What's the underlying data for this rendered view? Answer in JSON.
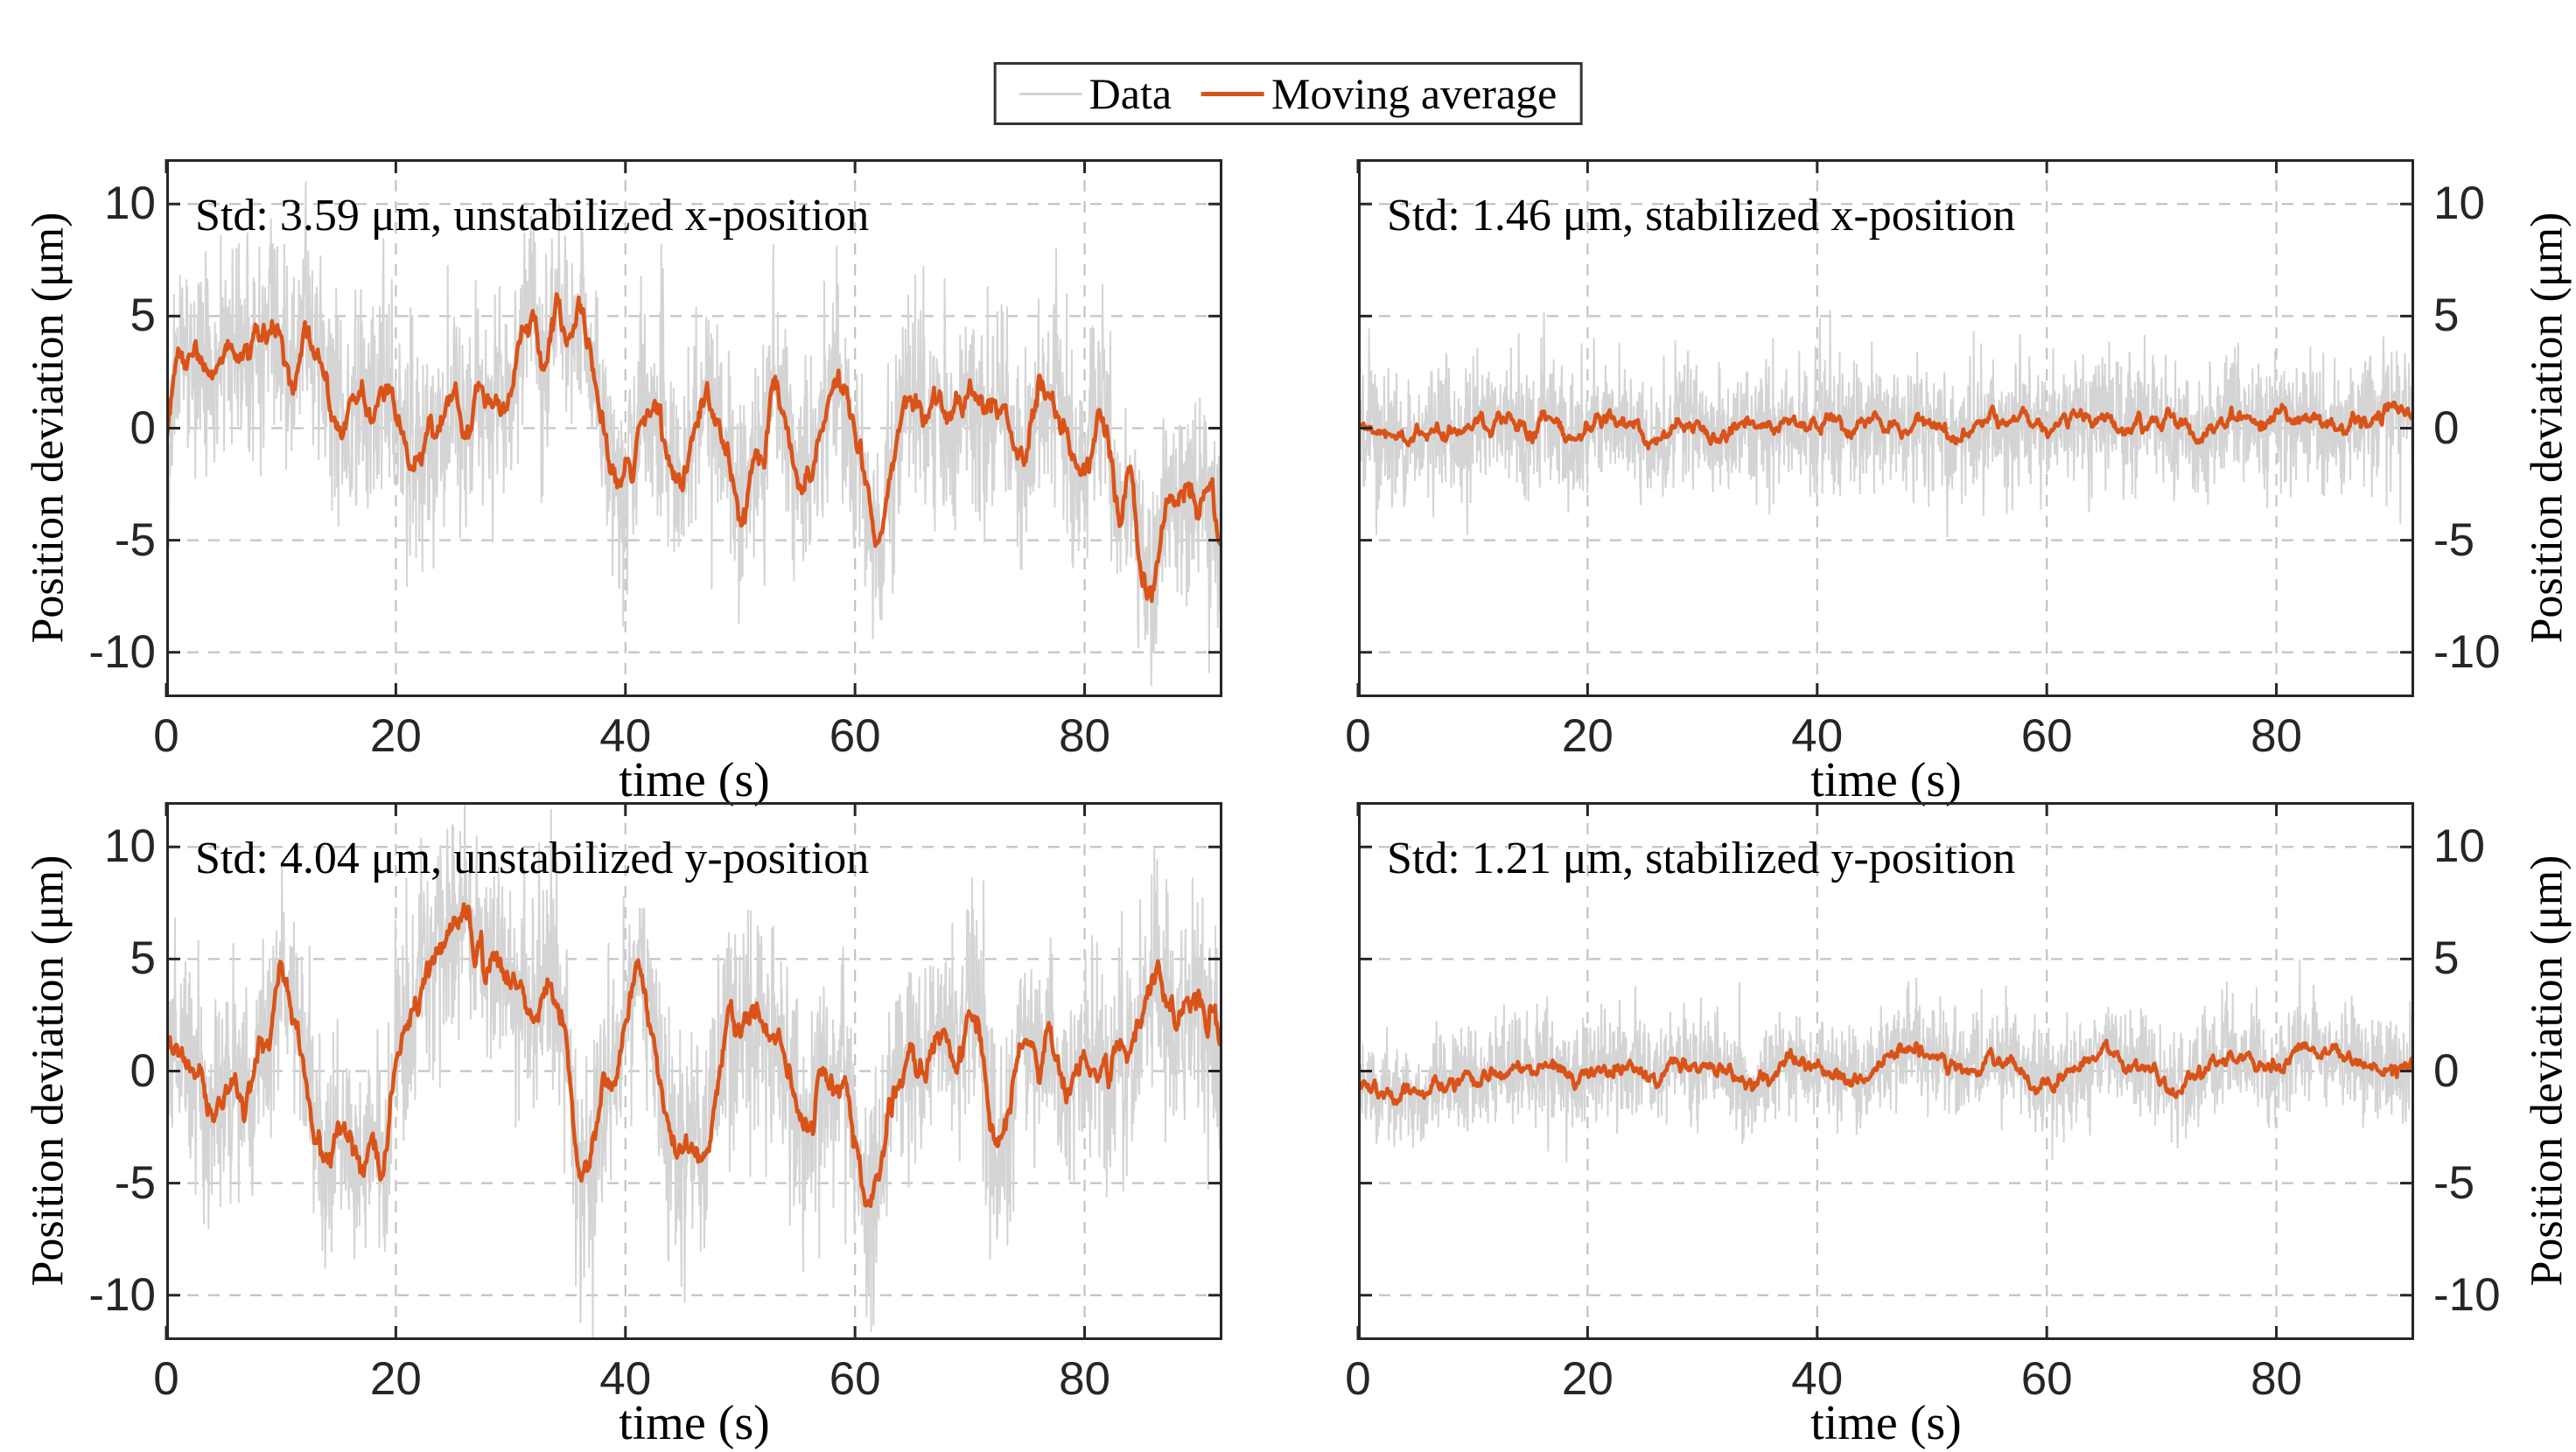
{
  "figure": {
    "background": "#ffffff"
  },
  "legend": {
    "items": [
      {
        "label": "Data",
        "color": "#d4d4d4"
      },
      {
        "label": "Moving average",
        "color": "#d95319"
      }
    ]
  },
  "chart_data": {
    "type": "line",
    "xlabel": "time (s)",
    "ylabel": "Position deviation (μm)",
    "xlim": [
      0,
      92
    ],
    "ylim": [
      -12,
      12
    ],
    "xticks": [
      0,
      20,
      40,
      60,
      80
    ],
    "yticks": [
      -10,
      -5,
      0,
      5,
      10
    ],
    "grid": "dashed",
    "legend_position": "top-center-outside",
    "colors": {
      "data": "#d4d4d4",
      "moving_average": "#d95319",
      "axis": "#262626",
      "grid": "#c3c3c3"
    },
    "series_names": [
      "Data",
      "Moving average"
    ],
    "moving_average_time_step_s": 1,
    "subplots": [
      {
        "id": "unstabilized-x",
        "annotation": "Std: 3.59 μm, unstabilized x-position",
        "std_um": 3.59,
        "ylabel_side": "left",
        "noise_std_um": 2.3,
        "seed": 11,
        "moving_average": [
          -1.0,
          2.9,
          3.5,
          3.1,
          2.4,
          3.7,
          3.2,
          2.9,
          4.2,
          4.7,
          4.1,
          2.3,
          4.8,
          3.6,
          1.5,
          0.5,
          0.9,
          1.3,
          0.7,
          1.4,
          0.85,
          -1.0,
          -1.5,
          -0.5,
          -0.2,
          1.5,
          -0.3,
          1.4,
          1.3,
          1.5,
          1.2,
          4.1,
          4.4,
          2.6,
          5.6,
          3.7,
          5.2,
          3.1,
          0.3,
          -2.0,
          -2.4,
          -1.0,
          1.35,
          0.5,
          -1.7,
          -2.4,
          0.0,
          1.3,
          0.0,
          -1.5,
          -3.6,
          -1.9,
          -0.85,
          1.5,
          0.5,
          -2.4,
          -1.7,
          -0.2,
          2.2,
          1.7,
          -0.35,
          -2.9,
          -5.3,
          -2.55,
          0.85,
          1.2,
          0.5,
          1.4,
          0.2,
          0.7,
          1.5,
          0.5,
          0.7,
          0.5,
          -0.85,
          -1.0,
          1.4,
          1.2,
          0.2,
          -1.0,
          -1.35,
          0.7,
          0.0,
          -4.4,
          -2.55,
          -6.1,
          -6.8,
          -3.9,
          -3.4,
          -2.9,
          -3.4,
          -2.7,
          -5.5
        ]
      },
      {
        "id": "stabilized-x",
        "annotation": "Std: 1.46 μm, stabilized x-position",
        "std_um": 1.46,
        "ylabel_side": "right",
        "noise_std_um": 1.45,
        "seed": 22,
        "moving_average": [
          0.2,
          -0.1,
          -0.3,
          -0.2,
          -0.4,
          -0.2,
          -0.3,
          -0.1,
          -0.35,
          -0.2,
          0.3,
          0.25,
          0.1,
          0.3,
          0.15,
          -0.3,
          0.45,
          0.3,
          -0.2,
          -0.4,
          -0.1,
          0.35,
          0.4,
          0.1,
          0.2,
          -0.3,
          -0.55,
          -0.4,
          0.15,
          0.3,
          -0.1,
          -0.5,
          -0.3,
          0.2,
          0.35,
          0.1,
          -0.2,
          0.3,
          0.1,
          -0.15,
          0.05,
          0.45,
          0.2,
          -0.1,
          0.15,
          0.4,
          0.55,
          0.25,
          0.0,
          0.3,
          0.15,
          -0.2,
          -0.45,
          -0.2,
          0.1,
          0.35,
          0.2,
          0.0,
          0.25,
          0.1,
          -0.15,
          0.1,
          0.4,
          0.5,
          0.3,
          0.45,
          0.3,
          0.1,
          0.35,
          0.5,
          0.25,
          0.1,
          -0.2,
          -0.5,
          -0.25,
          0.2,
          0.45,
          0.3,
          0.1,
          0.3,
          0.5,
          0.35,
          0.15,
          0.4,
          0.25,
          0.0,
          0.2,
          0.1,
          0.3,
          0.6,
          0.9,
          0.7,
          0.5
        ]
      },
      {
        "id": "unstabilized-y",
        "annotation": "Std: 4.04 μm, unstabilized y-position",
        "std_um": 4.04,
        "ylabel_side": "left",
        "noise_std_um": 2.5,
        "seed": 33,
        "moving_average": [
          1.5,
          1.2,
          0.5,
          -0.5,
          -2.2,
          -1.0,
          -0.9,
          -1.7,
          0.5,
          1.9,
          4.3,
          2.9,
          0.5,
          -3.2,
          -3.9,
          -2.9,
          -3.6,
          -4.4,
          -3.4,
          -4.0,
          0.9,
          2.0,
          3.6,
          4.8,
          5.8,
          6.5,
          6.9,
          5.3,
          4.6,
          5.3,
          3.9,
          3.3,
          2.1,
          4.1,
          2.9,
          0.5,
          -4.9,
          -3.7,
          -0.8,
          -0.5,
          1.9,
          4.3,
          3.2,
          -0.3,
          -2.9,
          -3.6,
          -3.2,
          -3.9,
          -0.8,
          2.2,
          1.7,
          3.0,
          1.9,
          1.4,
          0.5,
          -1.35,
          -2.55,
          -0.3,
          -1.2,
          -0.2,
          -2.9,
          -6.3,
          -4.6,
          -1.5,
          -0.3,
          0.5,
          0.2,
          0.85,
          1.5,
          0.2,
          2.6,
          1.2,
          -2.9,
          -3.4,
          0.5,
          1.5,
          0.5,
          1.9,
          -0.2,
          -0.5,
          0.5,
          -0.8,
          -0.2,
          0.85,
          0.5,
          2.9,
          4.3,
          3.6,
          2.2,
          2.9,
          3.2,
          1.9,
          2.2
        ]
      },
      {
        "id": "stabilized-y",
        "annotation": "Std: 1.21 μm, stabilized y-position",
        "std_um": 1.21,
        "ylabel_side": "right",
        "noise_std_um": 1.2,
        "seed": 44,
        "moving_average": [
          -0.6,
          -0.9,
          -1.1,
          -1.2,
          -1.0,
          -1.1,
          -0.9,
          -0.7,
          -0.5,
          -0.3,
          -0.2,
          -0.4,
          -0.1,
          0.1,
          0.2,
          0.0,
          0.3,
          0.1,
          -0.2,
          -0.4,
          -0.25,
          0.1,
          0.3,
          0.15,
          -0.1,
          -0.35,
          -0.2,
          0.2,
          0.4,
          0.2,
          0.0,
          0.25,
          0.1,
          -0.3,
          -0.5,
          -0.3,
          0.0,
          0.3,
          0.5,
          0.3,
          0.1,
          -0.2,
          -0.45,
          -0.6,
          -0.3,
          0.1,
          0.4,
          0.7,
          1.0,
          0.8,
          0.5,
          0.6,
          0.4,
          0.15,
          0.3,
          0.55,
          0.4,
          0.2,
          -0.1,
          -0.4,
          -0.6,
          -0.4,
          -0.15,
          0.1,
          0.35,
          0.9,
          0.75,
          0.5,
          0.3,
          0.1,
          -0.5,
          -0.9,
          -0.6,
          -0.2,
          0.1,
          0.4,
          0.55,
          0.35,
          0.5,
          0.3,
          0.1,
          0.45,
          1.0,
          0.8,
          0.55,
          0.7,
          0.5,
          0.25,
          0.0,
          -0.2,
          0.1,
          0.3,
          0.2
        ]
      }
    ]
  }
}
